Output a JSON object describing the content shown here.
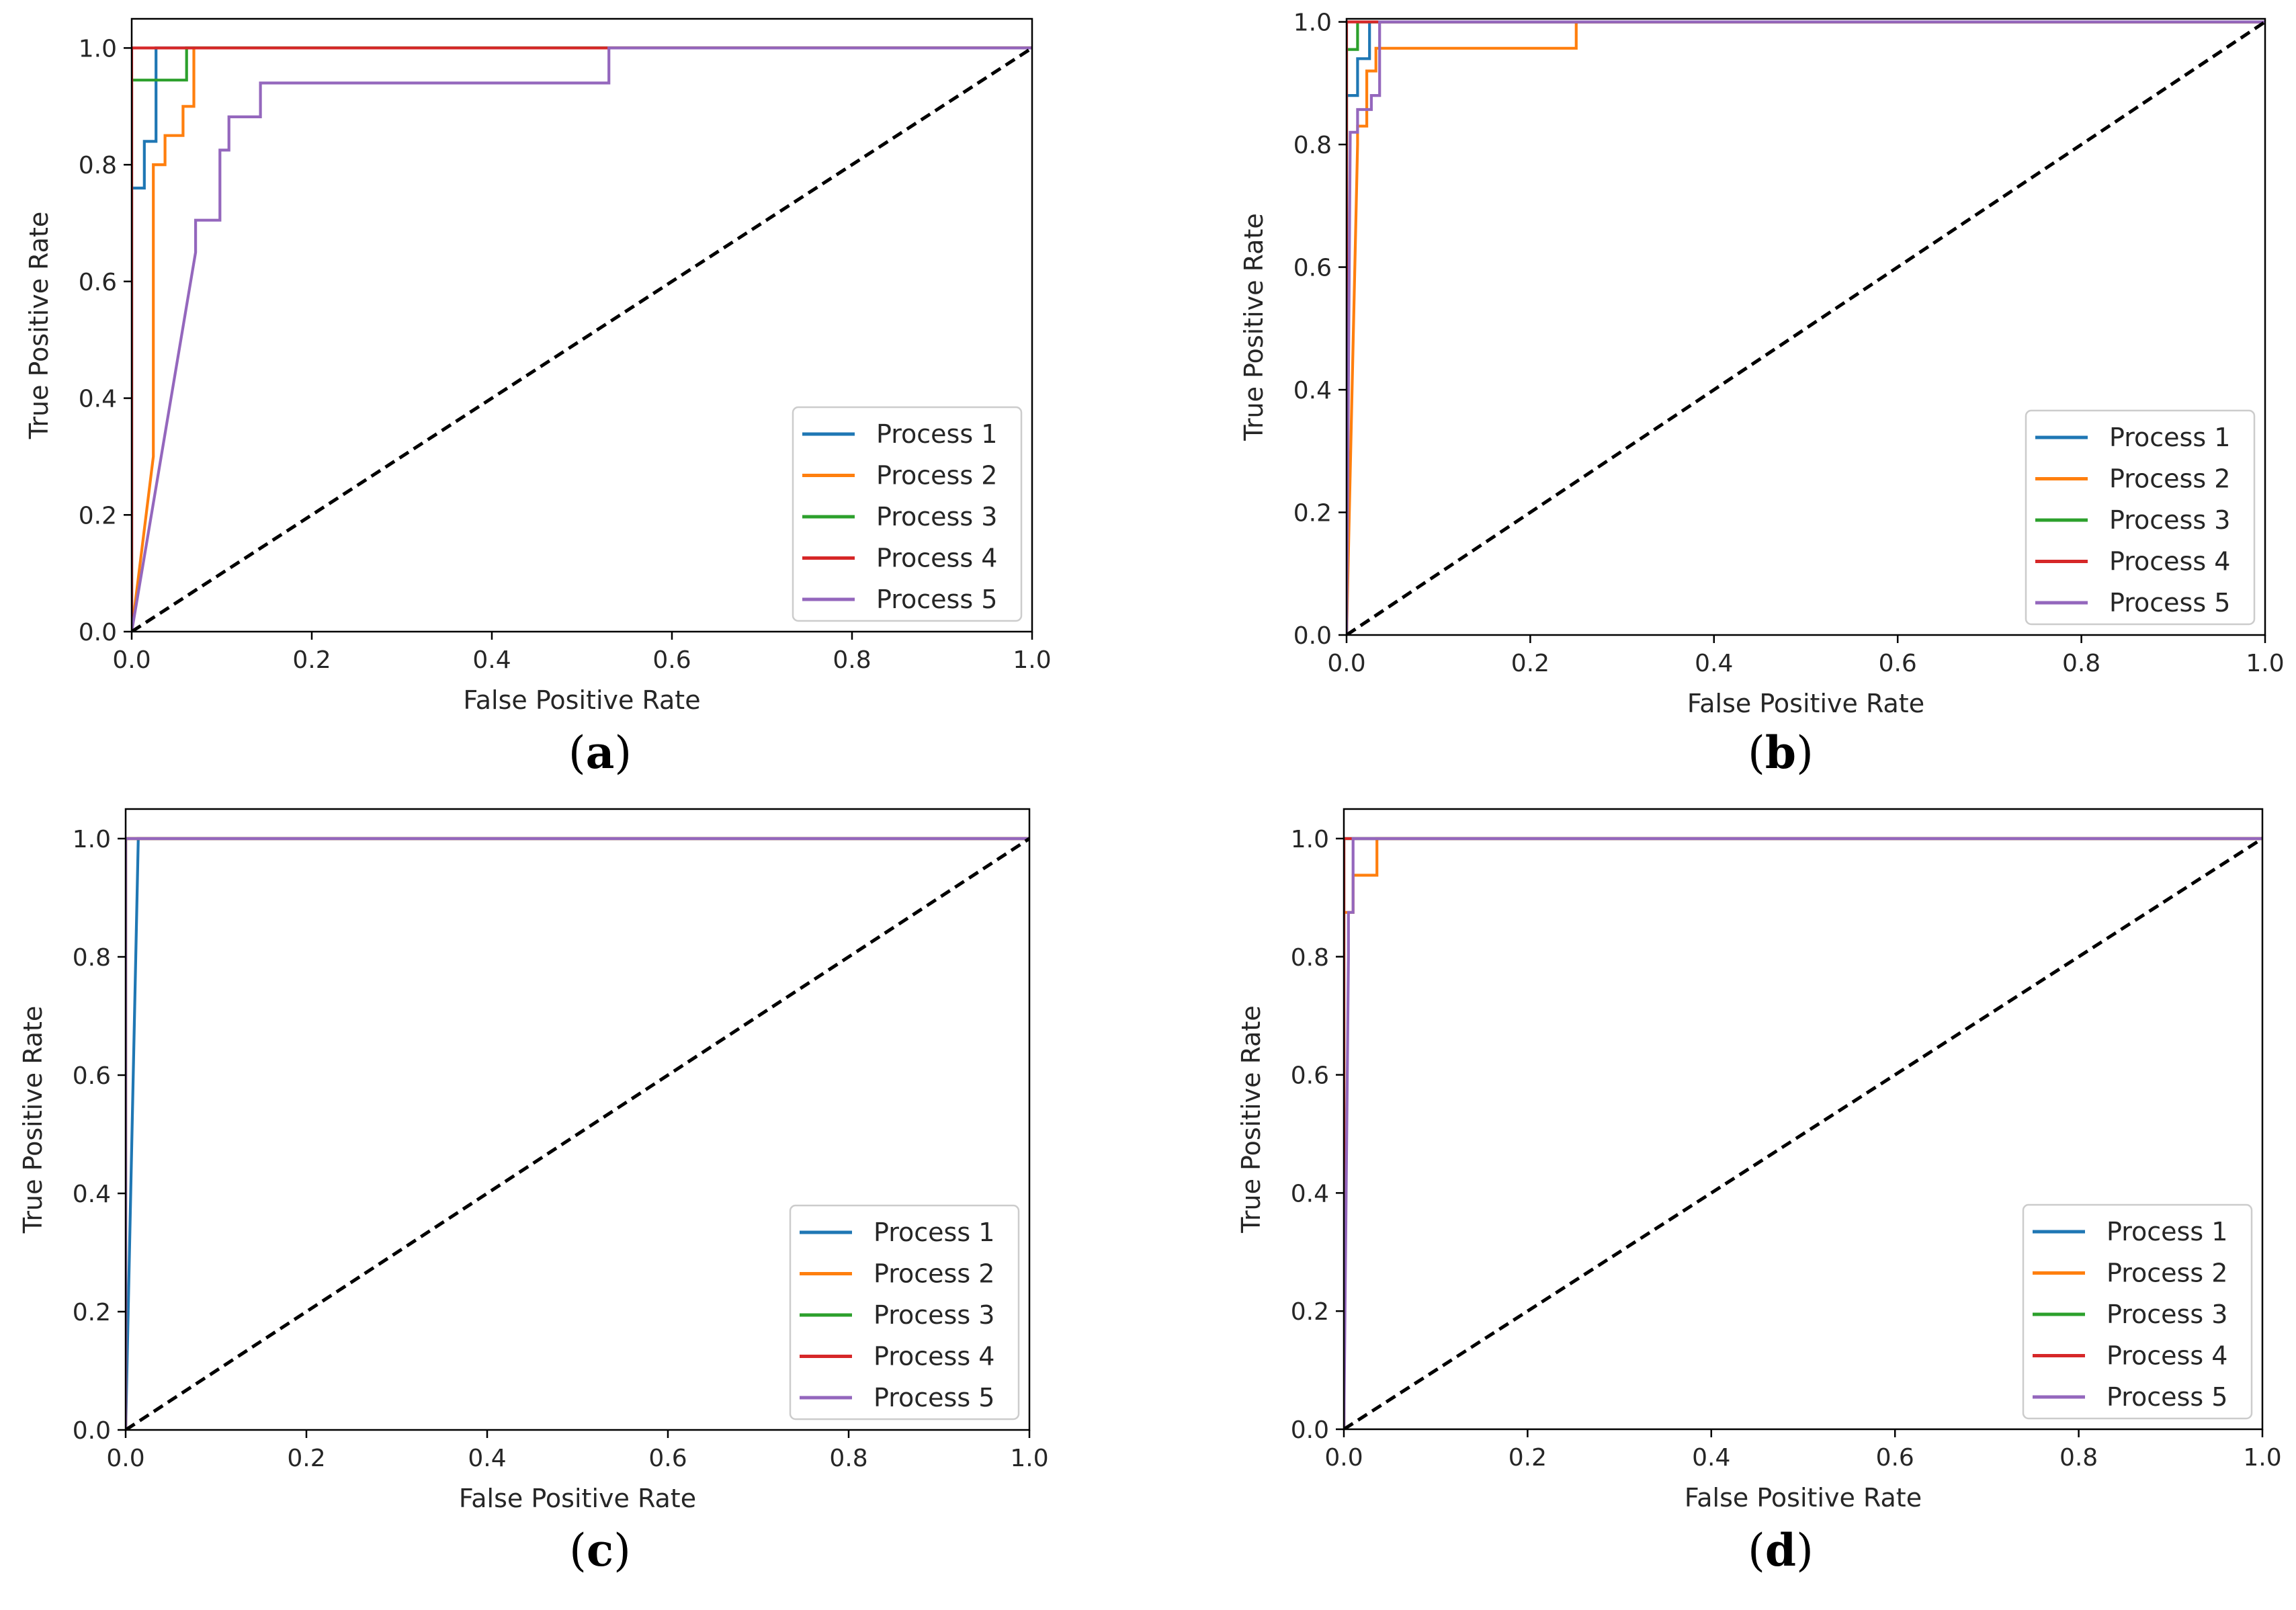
{
  "colors": {
    "Process 1": "#1f77b4",
    "Process 2": "#ff7f0e",
    "Process 3": "#2ca02c",
    "Process 4": "#d62728",
    "Process 5": "#9467bd",
    "chance": "#000000"
  },
  "chart_data": [
    {
      "type": "line",
      "caption_open": "(",
      "caption_letter": "a",
      "caption_close": ")",
      "xlabel": "False Positive Rate",
      "ylabel": "True Positive Rate",
      "xlim": [
        0,
        1
      ],
      "ylim": [
        0,
        1.05
      ],
      "xticks": [
        "0.0",
        "0.2",
        "0.4",
        "0.6",
        "0.8",
        "1.0"
      ],
      "yticks": [
        "0.0",
        "0.2",
        "0.4",
        "0.6",
        "0.8",
        "1.0"
      ],
      "legend_position": "lower-right",
      "chance_line": {
        "x": [
          0,
          1
        ],
        "y": [
          0,
          1
        ]
      },
      "series": [
        {
          "name": "Process 1",
          "x": [
            0,
            0,
            0.014,
            0.014,
            0.027,
            0.027,
            1
          ],
          "y": [
            0,
            0.76,
            0.76,
            0.84,
            0.84,
            1.0,
            1.0
          ]
        },
        {
          "name": "Process 2",
          "x": [
            0,
            0.024,
            0.024,
            0.037,
            0.037,
            0.057,
            0.057,
            0.069,
            0.069,
            1
          ],
          "y": [
            0,
            0.3,
            0.8,
            0.8,
            0.85,
            0.85,
            0.9,
            0.9,
            1.0,
            1.0
          ]
        },
        {
          "name": "Process 3",
          "x": [
            0,
            0,
            0.061,
            0.061,
            1
          ],
          "y": [
            0,
            0.945,
            0.945,
            1.0,
            1.0
          ]
        },
        {
          "name": "Process 4",
          "x": [
            0,
            0,
            1
          ],
          "y": [
            0,
            1.0,
            1.0
          ]
        },
        {
          "name": "Process 5",
          "x": [
            0,
            0.071,
            0.071,
            0.098,
            0.098,
            0.108,
            0.108,
            0.143,
            0.143,
            0.53,
            0.53,
            1
          ],
          "y": [
            0,
            0.65,
            0.705,
            0.705,
            0.825,
            0.825,
            0.882,
            0.882,
            0.94,
            0.94,
            1.0,
            1.0
          ]
        }
      ]
    },
    {
      "type": "line",
      "caption_open": "(",
      "caption_letter": "b",
      "caption_close": ")",
      "xlabel": "False Positive Rate",
      "ylabel": "True Positive Rate",
      "xlim": [
        0,
        1
      ],
      "ylim": [
        0,
        1.005
      ],
      "xticks": [
        "0.0",
        "0.2",
        "0.4",
        "0.6",
        "0.8",
        "1.0"
      ],
      "yticks": [
        "0.0",
        "0.2",
        "0.4",
        "0.6",
        "0.8",
        "1.0"
      ],
      "legend_position": "lower-right",
      "chance_line": {
        "x": [
          0,
          1
        ],
        "y": [
          0,
          1
        ]
      },
      "series": [
        {
          "name": "Process 1",
          "x": [
            0,
            0,
            0.012,
            0.012,
            0.025,
            0.025,
            1
          ],
          "y": [
            0,
            0.88,
            0.88,
            0.94,
            0.94,
            1.0,
            1.0
          ]
        },
        {
          "name": "Process 2",
          "x": [
            0,
            0.012,
            0.012,
            0.022,
            0.022,
            0.032,
            0.032,
            0.25,
            0.25,
            1
          ],
          "y": [
            0,
            0.8,
            0.83,
            0.83,
            0.92,
            0.92,
            0.957,
            0.957,
            1.0,
            1.0
          ]
        },
        {
          "name": "Process 3",
          "x": [
            0,
            0,
            0.012,
            0.012,
            1
          ],
          "y": [
            0,
            0.955,
            0.955,
            1.0,
            1.0
          ]
        },
        {
          "name": "Process 4",
          "x": [
            0,
            0,
            1
          ],
          "y": [
            0,
            1.0,
            1.0
          ]
        },
        {
          "name": "Process 5",
          "x": [
            0,
            0.004,
            0.004,
            0.012,
            0.012,
            0.027,
            0.027,
            0.036,
            0.036,
            1
          ],
          "y": [
            0,
            0.82,
            0.82,
            0.82,
            0.857,
            0.857,
            0.88,
            0.88,
            1.0,
            1.0
          ]
        }
      ]
    },
    {
      "type": "line",
      "caption_open": "(",
      "caption_letter": "c",
      "caption_close": ")",
      "xlabel": "False Positive Rate",
      "ylabel": "True Positive Rate",
      "xlim": [
        0,
        1
      ],
      "ylim": [
        0,
        1.05
      ],
      "xticks": [
        "0.0",
        "0.2",
        "0.4",
        "0.6",
        "0.8",
        "1.0"
      ],
      "yticks": [
        "0.0",
        "0.2",
        "0.4",
        "0.6",
        "0.8",
        "1.0"
      ],
      "legend_position": "lower-right",
      "chance_line": {
        "x": [
          0,
          1
        ],
        "y": [
          0,
          1
        ]
      },
      "series": [
        {
          "name": "Process 1",
          "x": [
            0,
            0.014,
            1
          ],
          "y": [
            0,
            1.0,
            1.0
          ]
        },
        {
          "name": "Process 2",
          "x": [
            0,
            0,
            1
          ],
          "y": [
            0,
            1.0,
            1.0
          ]
        },
        {
          "name": "Process 3",
          "x": [
            0,
            0,
            1
          ],
          "y": [
            0,
            1.0,
            1.0
          ]
        },
        {
          "name": "Process 4",
          "x": [
            0,
            0,
            1
          ],
          "y": [
            0,
            1.0,
            1.0
          ]
        },
        {
          "name": "Process 5",
          "x": [
            0,
            0,
            1
          ],
          "y": [
            0,
            1.0,
            1.0
          ]
        }
      ]
    },
    {
      "type": "line",
      "caption_open": "(",
      "caption_letter": "d",
      "caption_close": ")",
      "xlabel": "False Positive Rate",
      "ylabel": "True Positive Rate",
      "xlim": [
        0,
        1
      ],
      "ylim": [
        0,
        1.05
      ],
      "xticks": [
        "0.0",
        "0.2",
        "0.4",
        "0.6",
        "0.8",
        "1.0"
      ],
      "yticks": [
        "0.0",
        "0.2",
        "0.4",
        "0.6",
        "0.8",
        "1.0"
      ],
      "legend_position": "lower-right",
      "chance_line": {
        "x": [
          0,
          1
        ],
        "y": [
          0,
          1
        ]
      },
      "series": [
        {
          "name": "Process 1",
          "x": [
            0,
            0,
            1
          ],
          "y": [
            0,
            1.0,
            1.0
          ]
        },
        {
          "name": "Process 2",
          "x": [
            0,
            0,
            0.01,
            0.01,
            0.036,
            0.036,
            1
          ],
          "y": [
            0,
            0.875,
            0.875,
            0.938,
            0.938,
            1.0,
            1.0
          ]
        },
        {
          "name": "Process 3",
          "x": [
            0,
            0,
            1
          ],
          "y": [
            0,
            1.0,
            1.0
          ]
        },
        {
          "name": "Process 4",
          "x": [
            0,
            0,
            1
          ],
          "y": [
            0,
            1.0,
            1.0
          ]
        },
        {
          "name": "Process 5",
          "x": [
            0,
            0.005,
            0.005,
            0.01,
            0.01,
            1
          ],
          "y": [
            0,
            0.8,
            0.875,
            0.875,
            1.0,
            1.0
          ]
        }
      ]
    }
  ]
}
